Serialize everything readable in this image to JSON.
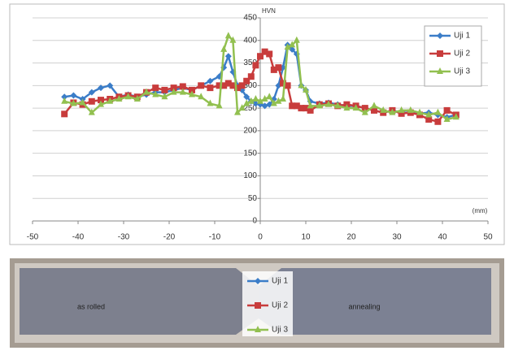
{
  "chart_data": {
    "type": "line",
    "y_axis_label": "HVN",
    "x_axis_label": "(mm)",
    "x": [
      -43,
      -41,
      -39,
      -37,
      -35,
      -33,
      -31,
      -29,
      -27,
      -25,
      -23,
      -21,
      -19,
      -17,
      -15,
      -13,
      -11,
      -9,
      -8,
      -7,
      -6,
      -5,
      -4,
      -3,
      -2,
      -1,
      0,
      1,
      2,
      3,
      4,
      5,
      6,
      7,
      8,
      9,
      10,
      11,
      13,
      15,
      17,
      19,
      21,
      23,
      25,
      27,
      29,
      31,
      33,
      35,
      37,
      39,
      41,
      43
    ],
    "series": [
      {
        "name": "Uji 1",
        "color": "#3b7dc8",
        "marker": "diamond",
        "values": [
          275,
          278,
          270,
          285,
          295,
          300,
          275,
          280,
          275,
          280,
          285,
          285,
          290,
          295,
          290,
          300,
          310,
          320,
          340,
          365,
          330,
          300,
          290,
          275,
          265,
          260,
          258,
          255,
          258,
          270,
          300,
          340,
          390,
          380,
          370,
          300,
          290,
          265,
          260,
          262,
          258,
          255,
          255,
          250,
          245,
          240,
          245,
          240,
          240,
          238,
          240,
          235,
          230,
          235
        ]
      },
      {
        "name": "Uji 2",
        "color": "#c83c3c",
        "marker": "square",
        "values": [
          237,
          262,
          258,
          265,
          268,
          270,
          275,
          278,
          275,
          285,
          295,
          290,
          295,
          298,
          290,
          300,
          295,
          300,
          300,
          305,
          300,
          295,
          300,
          310,
          320,
          345,
          365,
          375,
          370,
          335,
          340,
          305,
          300,
          255,
          255,
          250,
          250,
          245,
          258,
          260,
          255,
          258,
          255,
          250,
          245,
          240,
          245,
          238,
          240,
          235,
          225,
          220,
          245,
          235
        ]
      },
      {
        "name": "Uji 3",
        "color": "#92c050",
        "marker": "triangle",
        "values": [
          265,
          260,
          262,
          240,
          258,
          265,
          270,
          275,
          270,
          285,
          280,
          275,
          285,
          285,
          280,
          275,
          260,
          255,
          380,
          410,
          400,
          240,
          250,
          260,
          265,
          270,
          265,
          270,
          275,
          260,
          265,
          270,
          385,
          390,
          400,
          300,
          290,
          255,
          255,
          258,
          255,
          250,
          250,
          240,
          255,
          245,
          240,
          245,
          245,
          240,
          235,
          240,
          225,
          230
        ]
      }
    ],
    "xlim": [
      -50,
      50
    ],
    "ylim": [
      0,
      450
    ],
    "xticks": [
      -50,
      -40,
      -30,
      -20,
      -10,
      0,
      10,
      20,
      30,
      40,
      50
    ],
    "yticks": [
      0,
      50,
      100,
      150,
      200,
      250,
      300,
      350,
      400,
      450
    ],
    "grid": true,
    "legend": "top-right"
  },
  "photo": {
    "left_label": "as rolled",
    "right_label": "annealing"
  }
}
